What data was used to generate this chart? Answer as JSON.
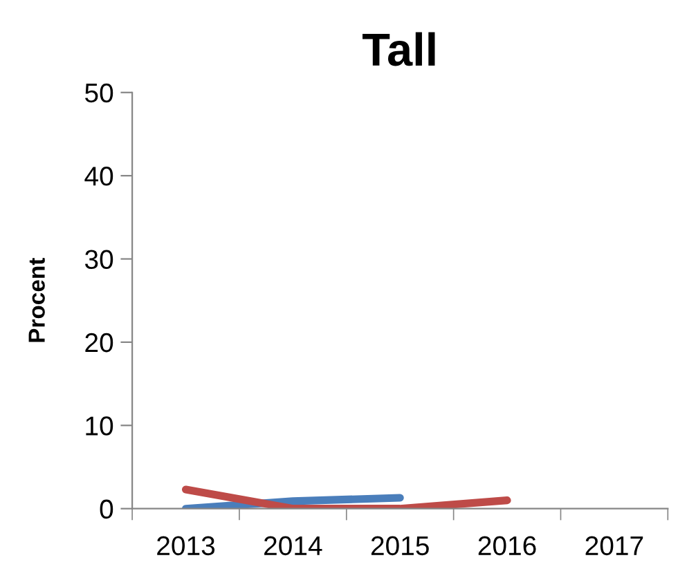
{
  "chart_data": {
    "type": "line",
    "title": "Tall",
    "ylabel": "Procent",
    "categories": [
      "2013",
      "2014",
      "2015",
      "2016",
      "2017"
    ],
    "series": [
      {
        "color": "#4a7ebb",
        "values": [
          0,
          0.9,
          1.3,
          null,
          null
        ]
      },
      {
        "color": "#be4b48",
        "values": [
          2.3,
          0,
          0,
          1.0,
          null
        ]
      }
    ],
    "ylim": [
      0,
      50
    ],
    "yticks": [
      0,
      10,
      20,
      30,
      40,
      50
    ],
    "grid": false,
    "marker": "none",
    "line_style": "solid"
  }
}
